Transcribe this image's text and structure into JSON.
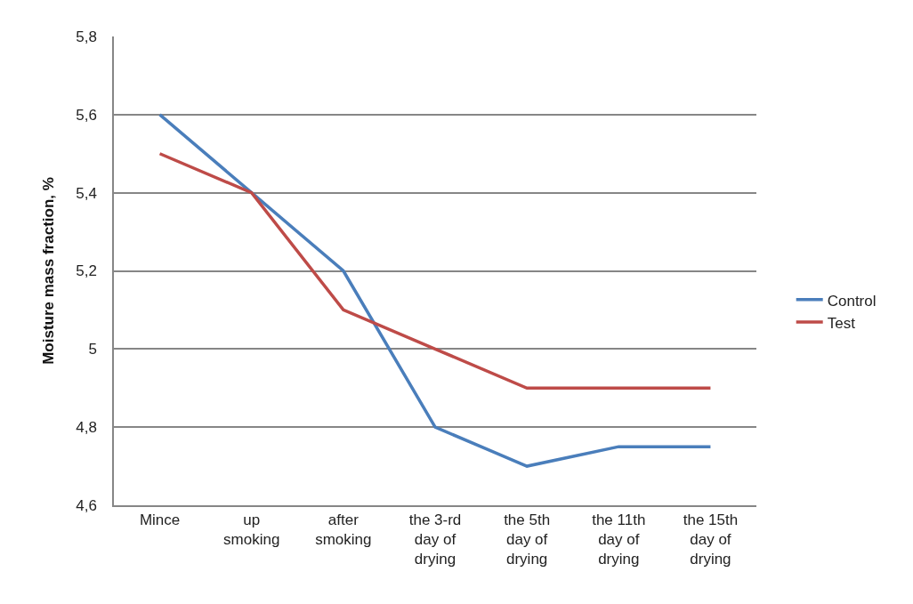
{
  "chart_data": {
    "type": "line",
    "ylabel": "Moisture mass fraction, %",
    "categories": [
      "Mince",
      "up smoking",
      "after smoking",
      "the 3-rd day of drying",
      "the 5th day of drying",
      "the 11th day of drying",
      "the 15th day of drying"
    ],
    "series": [
      {
        "name": "Control",
        "color": "#4a7ebb",
        "values": [
          5.6,
          5.4,
          5.2,
          4.8,
          4.7,
          4.75,
          4.75
        ]
      },
      {
        "name": "Test",
        "color": "#be4b48",
        "values": [
          5.5,
          5.4,
          5.1,
          5.0,
          4.9,
          4.9,
          4.9
        ]
      }
    ],
    "ylim": [
      4.6,
      5.8
    ],
    "yticks": [
      {
        "value": 4.6,
        "label": "4,6"
      },
      {
        "value": 4.8,
        "label": "4,8"
      },
      5,
      {
        "value": 5.2,
        "label": "5,2"
      },
      {
        "value": 5.4,
        "label": "5,4"
      },
      {
        "value": 5.6,
        "label": "5,6"
      },
      {
        "value": 5.8,
        "label": "5,8"
      }
    ],
    "grid": "y",
    "legend": "right"
  }
}
